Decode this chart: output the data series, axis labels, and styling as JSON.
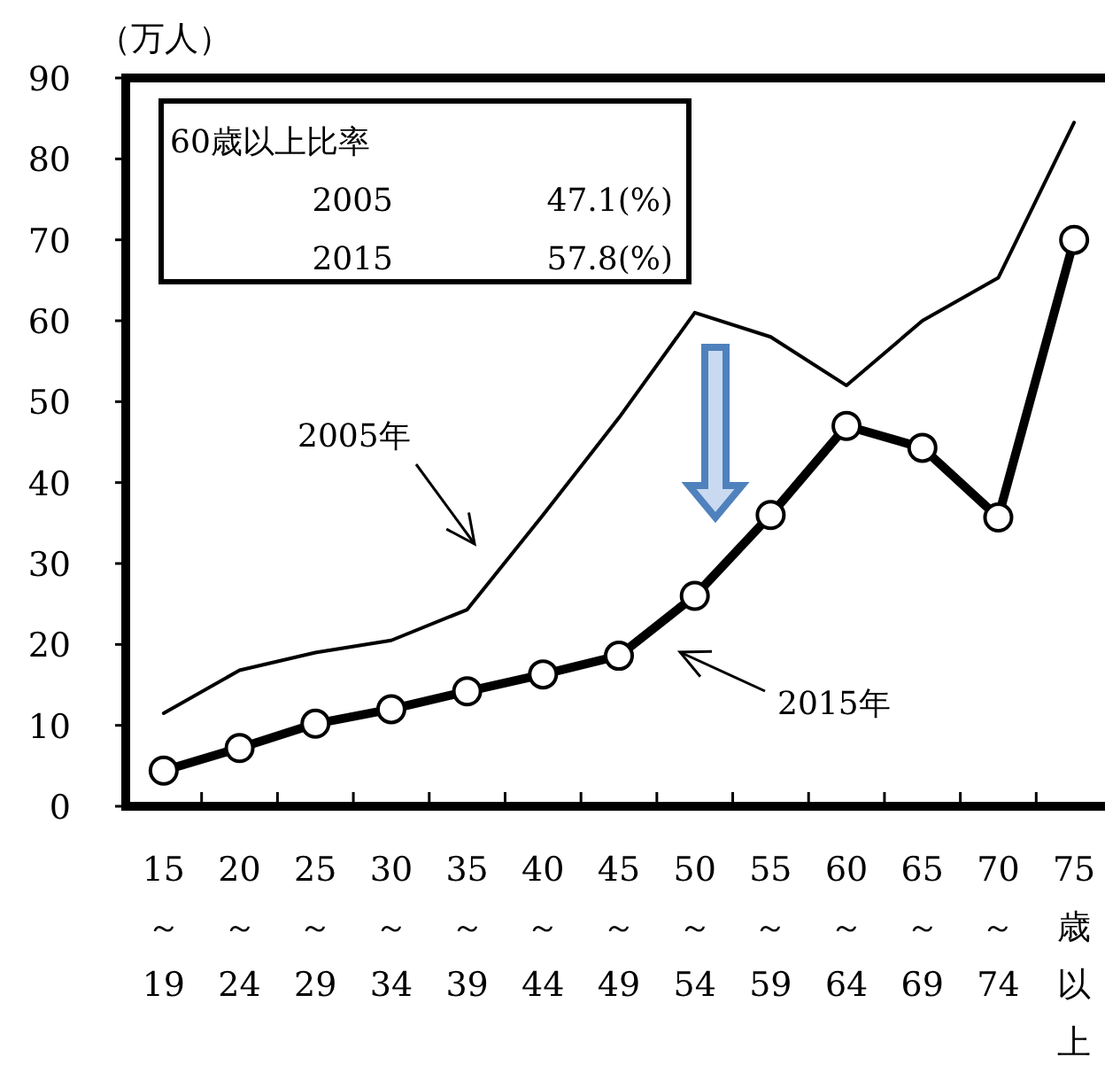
{
  "chart_data": {
    "type": "line",
    "ylabel": "（万人）",
    "categories": [
      "15～19",
      "20～24",
      "25～29",
      "30～34",
      "35～39",
      "40～44",
      "45～49",
      "50～54",
      "55～59",
      "60～64",
      "65～69",
      "70～74",
      "75歳以上"
    ],
    "series": [
      {
        "color": "#000000",
        "marker": "none",
        "values": [
          11.5,
          16.8,
          19,
          20.5,
          24.3,
          36,
          48,
          61,
          58,
          52,
          60,
          65.3,
          84.5
        ]
      },
      {
        "color": "#000000",
        "marker": "circle",
        "values": [
          4.4,
          7.2,
          10.2,
          12,
          14.2,
          16.3,
          18.6,
          26,
          36,
          47,
          44.3,
          35.7,
          70
        ]
      }
    ],
    "ylim": [
      0,
      90
    ],
    "yticks": [
      0,
      10,
      20,
      30,
      40,
      50,
      60,
      70,
      80,
      90
    ],
    "grid": false,
    "annotations": [
      "60歳以上比率",
      "2005",
      "47.1(%)",
      "2015",
      "57.8(%)",
      "2005年",
      "2015年"
    ]
  }
}
